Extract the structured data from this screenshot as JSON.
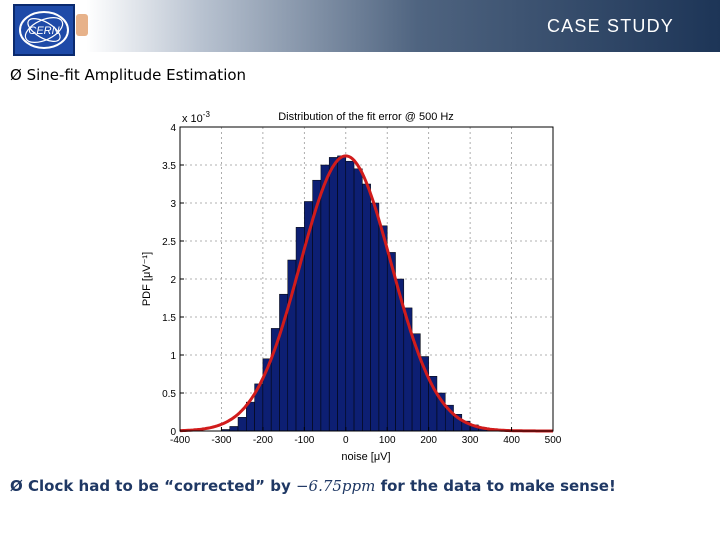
{
  "slide": {
    "header_title": "CASE STUDY",
    "logo_text": "CERN",
    "bullet_marker": "Ø",
    "bullet1": "Sine-fit Amplitude Estimation",
    "bullet2_pre": "Clock had to be “corrected” by ",
    "bullet2_math": "−6.75ppm",
    "bullet2_post": " for the data to make sense!"
  },
  "chart_data": {
    "type": "bar",
    "title": "Distribution of the fit error @ 500 Hz",
    "xlabel": "noise [μV]",
    "ylabel": "PDF [μV⁻¹]",
    "y_multiplier_label": "x 10",
    "y_multiplier_exp": "-3",
    "xlim": [
      -400,
      500
    ],
    "ylim": [
      0,
      4
    ],
    "x_ticks": [
      -400,
      -300,
      -200,
      -100,
      0,
      100,
      200,
      300,
      400,
      500
    ],
    "x_tick_labels": [
      "-400",
      "-300",
      "-200",
      "-100",
      "0",
      "100",
      "200",
      "300",
      "400",
      "500"
    ],
    "y_ticks": [
      0,
      0.5,
      1,
      1.5,
      2,
      2.5,
      3,
      3.5,
      4
    ],
    "y_tick_labels": [
      "0",
      "0.5",
      "1",
      "1.5",
      "2",
      "2.5",
      "3",
      "3.5",
      "4"
    ],
    "grid": true,
    "histogram": {
      "bin_centers": [
        -290,
        -270,
        -250,
        -230,
        -210,
        -190,
        -170,
        -150,
        -130,
        -110,
        -90,
        -70,
        -50,
        -30,
        -10,
        10,
        30,
        50,
        70,
        90,
        110,
        130,
        150,
        170,
        190,
        210,
        230,
        250,
        270,
        290,
        310,
        330,
        350,
        370,
        390,
        410
      ],
      "values": [
        0.02,
        0.06,
        0.18,
        0.38,
        0.62,
        0.95,
        1.35,
        1.8,
        2.25,
        2.68,
        3.02,
        3.3,
        3.5,
        3.6,
        3.62,
        3.55,
        3.45,
        3.25,
        3.0,
        2.7,
        2.35,
        2.0,
        1.62,
        1.28,
        0.98,
        0.72,
        0.5,
        0.34,
        0.22,
        0.13,
        0.08,
        0.045,
        0.02,
        0.01,
        0.005,
        0.002
      ],
      "color": "#0d1f73"
    },
    "fit_curve": {
      "type": "gaussian",
      "mean": 0,
      "std": 110,
      "peak": 3.62,
      "color": "#d11c1c"
    }
  }
}
